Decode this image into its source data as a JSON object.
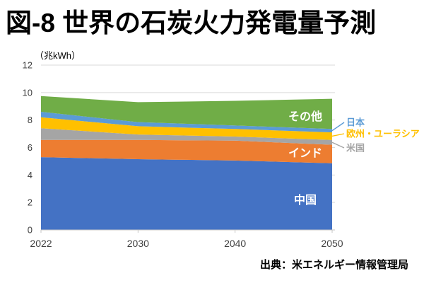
{
  "source_note": "出典：米エネルギー情報管理局",
  "chart_data": {
    "type": "area",
    "stacked": true,
    "title": "図-8 世界の石炭火力発電量予測",
    "unit_label": "（兆kWh）",
    "xlabel": "",
    "ylabel": "兆kWh",
    "categories": [
      "2022",
      "2030",
      "2040",
      "2050"
    ],
    "series": [
      {
        "name": "中国",
        "color": "#4472C4",
        "values": [
          5.3,
          5.15,
          5.05,
          4.85
        ],
        "label_placement": "inside"
      },
      {
        "name": "インド",
        "color": "#ED7D31",
        "values": [
          1.25,
          1.4,
          1.45,
          1.35
        ],
        "label_placement": "inside"
      },
      {
        "name": "米国",
        "color": "#A5A5A5",
        "values": [
          0.85,
          0.4,
          0.3,
          0.35
        ],
        "label_placement": "callout"
      },
      {
        "name": "欧州・ユーラシア",
        "color": "#FFC000",
        "values": [
          0.8,
          0.6,
          0.55,
          0.55
        ],
        "label_placement": "callout"
      },
      {
        "name": "日本",
        "color": "#5B9BD5",
        "values": [
          0.4,
          0.3,
          0.25,
          0.25
        ],
        "label_placement": "callout"
      },
      {
        "name": "その他",
        "color": "#70AD47",
        "values": [
          1.15,
          1.45,
          1.8,
          2.2
        ],
        "label_placement": "inside"
      }
    ],
    "ylim": [
      0,
      12
    ],
    "ytick_step": 2,
    "grid": true,
    "legend_position": "inline-and-right-callouts"
  },
  "colors": {
    "grid": "#D9D9D9",
    "axis_line": "#C6C6C6",
    "tick_text": "#404040",
    "inline_label_text": "#FFFFFF",
    "background": "#FFFFFF"
  }
}
